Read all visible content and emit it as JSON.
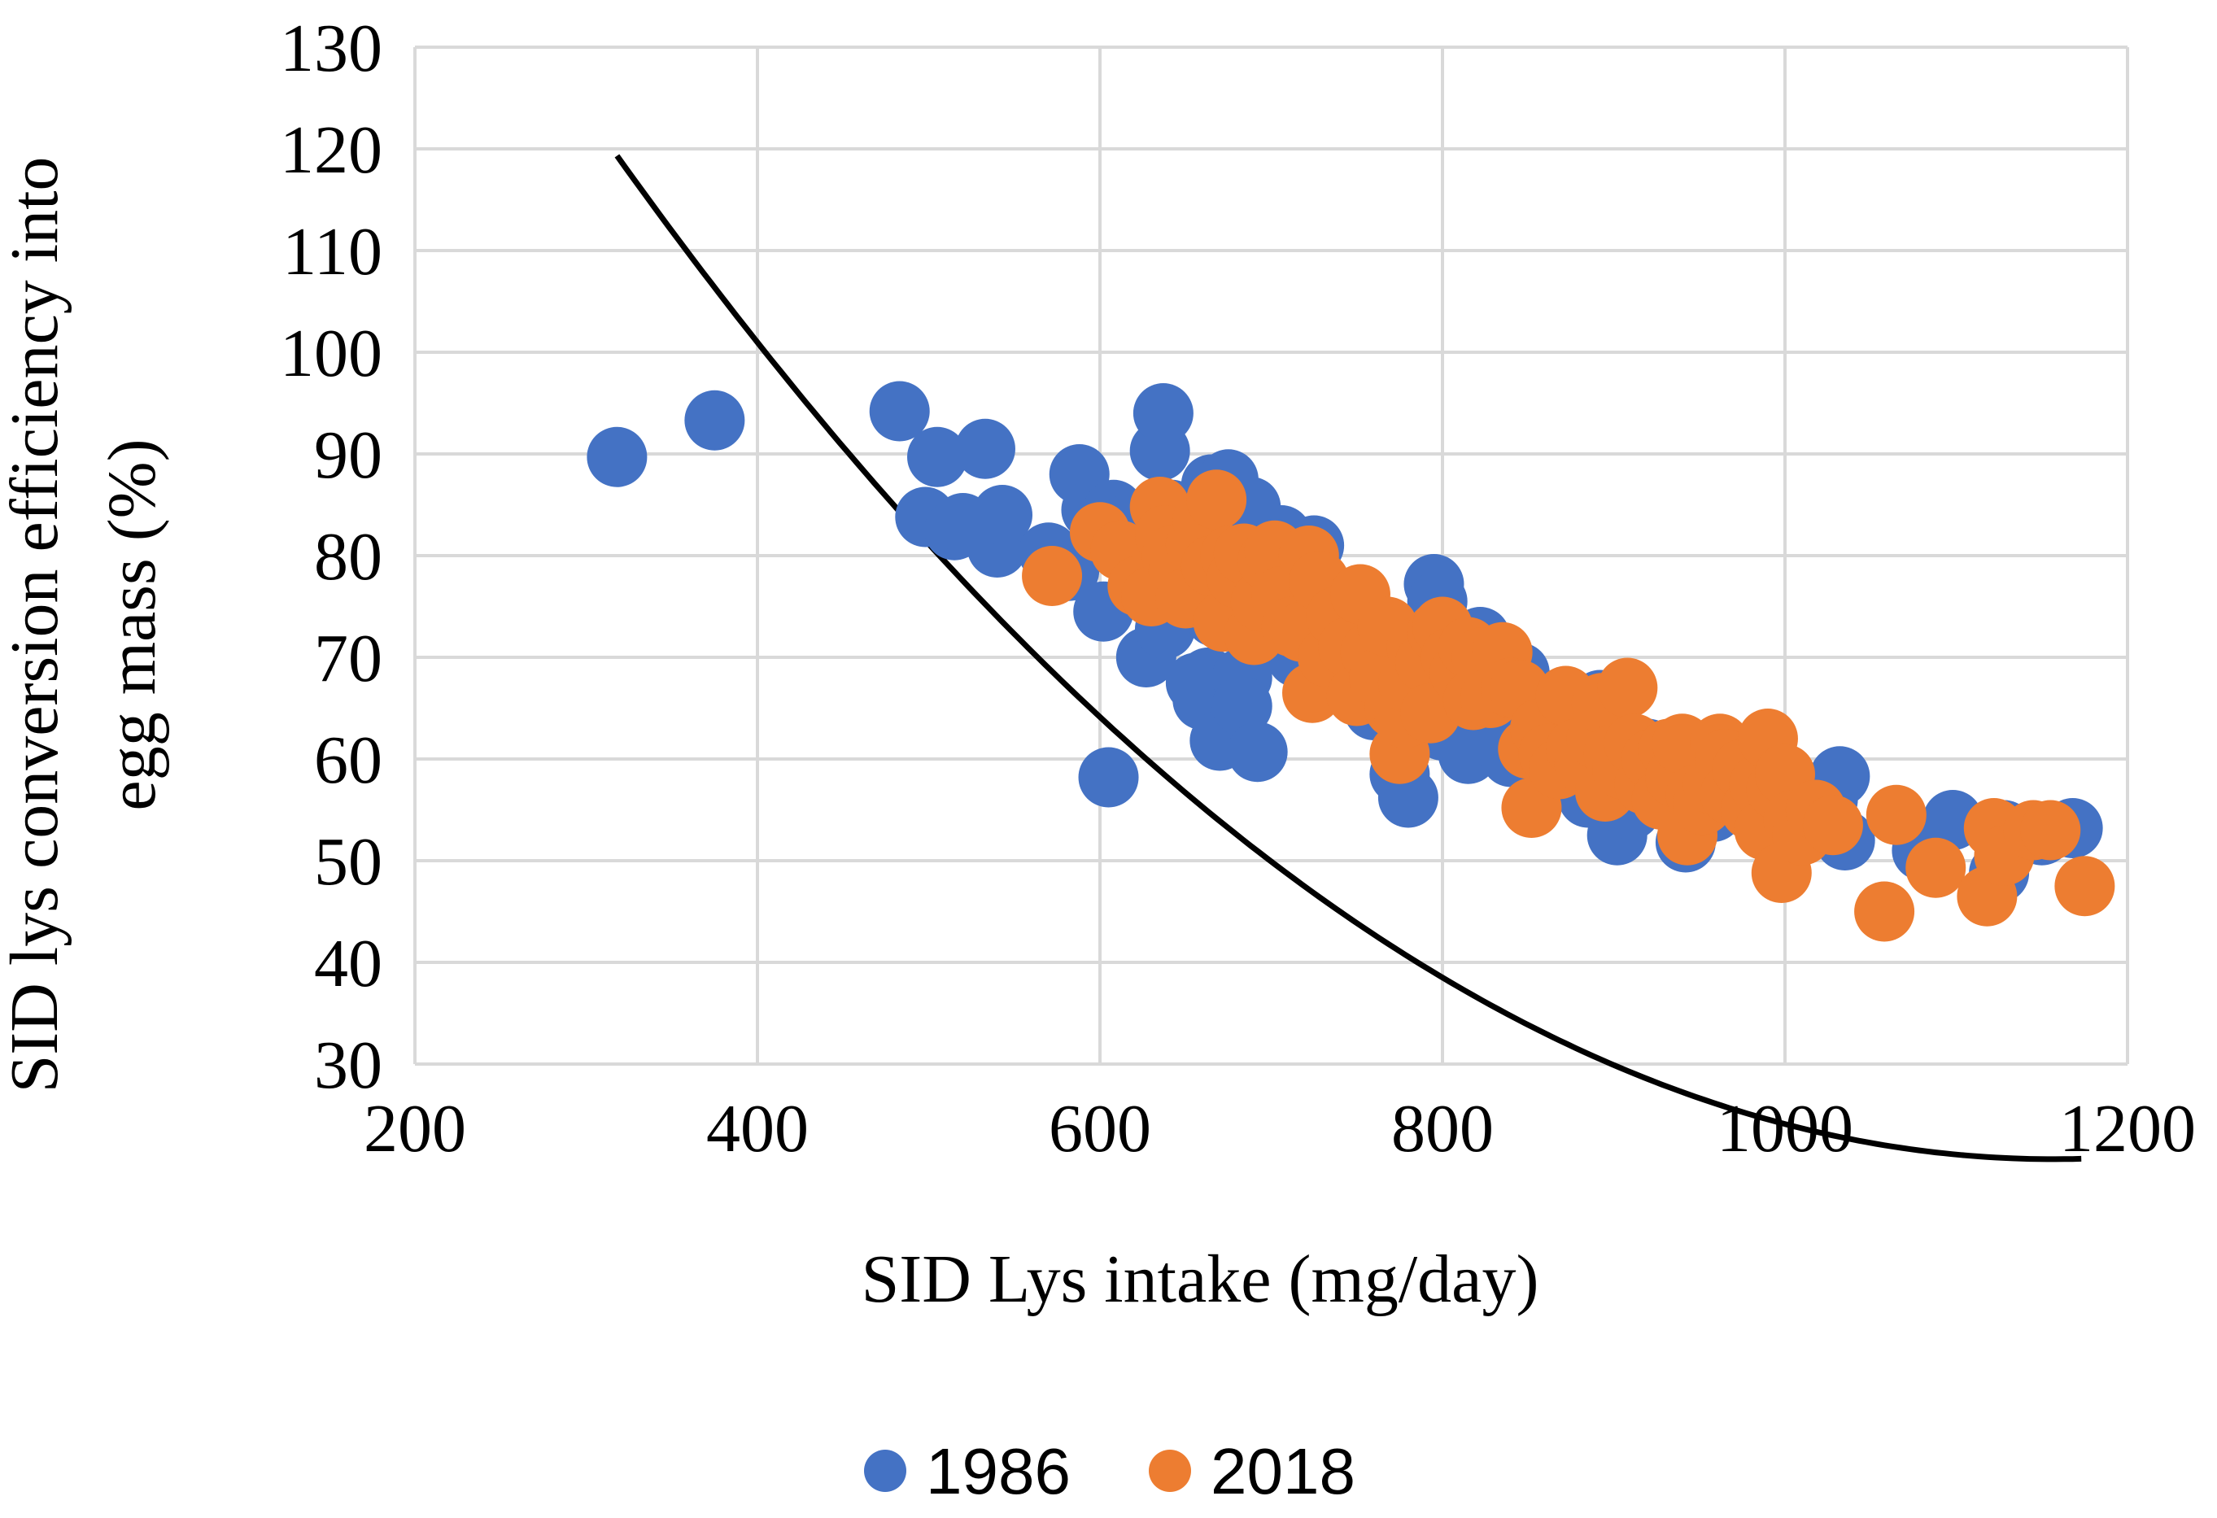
{
  "chart_data": {
    "type": "scatter",
    "title": "",
    "xlabel": "SID Lys intake (mg/day)",
    "ylabel_line1": "SID lys conversion efficiency into",
    "ylabel_line2": "egg mass (%)",
    "xlim": [
      200,
      1200
    ],
    "ylim": [
      30,
      130
    ],
    "x_ticks": [
      200,
      400,
      600,
      800,
      1000,
      1200
    ],
    "y_ticks": [
      30,
      40,
      50,
      60,
      70,
      80,
      90,
      100,
      110,
      120,
      130
    ],
    "grid": true,
    "legend_position": "bottom-center",
    "colors": {
      "series_1986": "#4472C4",
      "series_2018": "#ED7D31",
      "trendline": "#000000",
      "grid": "#D9D9D9"
    },
    "series": [
      {
        "name": "1986",
        "color": "#4472C4",
        "points": [
          [
            318,
            89.7
          ],
          [
            375,
            93.3
          ],
          [
            483,
            94.2
          ],
          [
            498,
            83.8
          ],
          [
            505,
            89.7
          ],
          [
            515,
            82.5
          ],
          [
            520,
            83.2
          ],
          [
            533,
            90.5
          ],
          [
            540,
            80.8
          ],
          [
            543,
            84
          ],
          [
            570,
            80.3
          ],
          [
            582,
            78.5
          ],
          [
            588,
            88
          ],
          [
            595,
            84.5
          ],
          [
            602,
            74.5
          ],
          [
            605,
            58.2
          ],
          [
            608,
            84.5
          ],
          [
            615,
            83
          ],
          [
            627,
            70
          ],
          [
            632,
            81.2
          ],
          [
            635,
            90.3
          ],
          [
            637,
            94
          ],
          [
            638,
            72.8
          ],
          [
            642,
            84.5
          ],
          [
            648,
            79.5
          ],
          [
            652,
            78
          ],
          [
            656,
            67.5
          ],
          [
            660,
            65.8
          ],
          [
            663,
            85.8
          ],
          [
            663,
            68
          ],
          [
            665,
            87
          ],
          [
            667,
            74
          ],
          [
            668,
            79.5
          ],
          [
            670,
            61.8
          ],
          [
            672,
            84
          ],
          [
            675,
            87.5
          ],
          [
            678,
            76.5
          ],
          [
            683,
            68
          ],
          [
            683,
            65.2
          ],
          [
            688,
            84.8
          ],
          [
            692,
            60.7
          ],
          [
            696,
            79
          ],
          [
            702,
            77.5
          ],
          [
            706,
            82
          ],
          [
            710,
            79
          ],
          [
            715,
            70
          ],
          [
            720,
            73
          ],
          [
            725,
            81
          ],
          [
            728,
            76
          ],
          [
            735,
            74.5
          ],
          [
            742,
            71
          ],
          [
            750,
            71
          ],
          [
            760,
            64.8
          ],
          [
            768,
            68.5
          ],
          [
            775,
            58.5
          ],
          [
            778,
            66
          ],
          [
            780,
            56.2
          ],
          [
            787,
            63
          ],
          [
            792,
            64
          ],
          [
            795,
            77.2
          ],
          [
            797,
            75.5
          ],
          [
            800,
            62.8
          ],
          [
            808,
            63.5
          ],
          [
            815,
            60.5
          ],
          [
            822,
            72
          ],
          [
            825,
            67
          ],
          [
            830,
            62
          ],
          [
            838,
            66
          ],
          [
            840,
            60.2
          ],
          [
            845,
            68.5
          ],
          [
            852,
            62.5
          ],
          [
            860,
            60.5
          ],
          [
            865,
            58
          ],
          [
            870,
            59
          ],
          [
            878,
            57.5
          ],
          [
            885,
            56.2
          ],
          [
            892,
            65.8
          ],
          [
            898,
            63
          ],
          [
            902,
            52.5
          ],
          [
            905,
            60
          ],
          [
            910,
            55
          ],
          [
            915,
            57
          ],
          [
            920,
            61
          ],
          [
            925,
            56.5
          ],
          [
            930,
            60
          ],
          [
            938,
            58
          ],
          [
            942,
            51.8
          ],
          [
            950,
            55
          ],
          [
            955,
            59
          ],
          [
            958,
            54.8
          ],
          [
            965,
            56
          ],
          [
            970,
            58.5
          ],
          [
            975,
            57.5
          ],
          [
            985,
            56
          ],
          [
            995,
            55
          ],
          [
            1005,
            53.5
          ],
          [
            1015,
            55.5
          ],
          [
            1025,
            56
          ],
          [
            1032,
            58.3
          ],
          [
            1035,
            52
          ],
          [
            1080,
            51
          ],
          [
            1098,
            54
          ],
          [
            1125,
            48.8
          ],
          [
            1128,
            53
          ],
          [
            1150,
            52.5
          ],
          [
            1168,
            53.2
          ]
        ]
      },
      {
        "name": "2018",
        "color": "#ED7D31",
        "points": [
          [
            572,
            78
          ],
          [
            600,
            82.3
          ],
          [
            612,
            80.5
          ],
          [
            622,
            77
          ],
          [
            630,
            76
          ],
          [
            635,
            84.8
          ],
          [
            638,
            82
          ],
          [
            642,
            80
          ],
          [
            646,
            78.5
          ],
          [
            650,
            75.8
          ],
          [
            656,
            81
          ],
          [
            660,
            83.5
          ],
          [
            665,
            79
          ],
          [
            668,
            85.5
          ],
          [
            672,
            73.5
          ],
          [
            676,
            80
          ],
          [
            680,
            77.8
          ],
          [
            684,
            80.2
          ],
          [
            690,
            72.2
          ],
          [
            694,
            75.5
          ],
          [
            698,
            79.5
          ],
          [
            702,
            80.5
          ],
          [
            706,
            76
          ],
          [
            712,
            73
          ],
          [
            718,
            72.5
          ],
          [
            722,
            80
          ],
          [
            724,
            66.5
          ],
          [
            728,
            77.5
          ],
          [
            733,
            70
          ],
          [
            738,
            74
          ],
          [
            745,
            71
          ],
          [
            750,
            66.2
          ],
          [
            752,
            76.2
          ],
          [
            758,
            70.5
          ],
          [
            763,
            68
          ],
          [
            768,
            73
          ],
          [
            772,
            65
          ],
          [
            775,
            60.5
          ],
          [
            778,
            64
          ],
          [
            780,
            67.5
          ],
          [
            785,
            71
          ],
          [
            790,
            69.5
          ],
          [
            793,
            64.5
          ],
          [
            797,
            72.5
          ],
          [
            800,
            73
          ],
          [
            805,
            70
          ],
          [
            810,
            68.5
          ],
          [
            815,
            71
          ],
          [
            818,
            65.8
          ],
          [
            823,
            70
          ],
          [
            828,
            66
          ],
          [
            835,
            70.5
          ],
          [
            840,
            67
          ],
          [
            845,
            66.8
          ],
          [
            850,
            61
          ],
          [
            852,
            55.2
          ],
          [
            857,
            63
          ],
          [
            862,
            60.5
          ],
          [
            868,
            59
          ],
          [
            872,
            66.2
          ],
          [
            878,
            61
          ],
          [
            883,
            59.5
          ],
          [
            890,
            62
          ],
          [
            893,
            65.5
          ],
          [
            895,
            56.8
          ],
          [
            900,
            60.5
          ],
          [
            905,
            59
          ],
          [
            908,
            67
          ],
          [
            912,
            61.5
          ],
          [
            918,
            57.5
          ],
          [
            922,
            60
          ],
          [
            928,
            56
          ],
          [
            932,
            61
          ],
          [
            936,
            58.2
          ],
          [
            940,
            61.5
          ],
          [
            943,
            52.5
          ],
          [
            948,
            56.5
          ],
          [
            952,
            55.5
          ],
          [
            958,
            57.5
          ],
          [
            962,
            61.5
          ],
          [
            965,
            60
          ],
          [
            968,
            56.5
          ],
          [
            975,
            59
          ],
          [
            980,
            55
          ],
          [
            985,
            57.5
          ],
          [
            988,
            53
          ],
          [
            990,
            62
          ],
          [
            995,
            57
          ],
          [
            998,
            48.8
          ],
          [
            1000,
            58.5
          ],
          [
            1005,
            54
          ],
          [
            1010,
            52.5
          ],
          [
            1018,
            55
          ],
          [
            1028,
            53.5
          ],
          [
            1058,
            45
          ],
          [
            1065,
            54.5
          ],
          [
            1088,
            49.3
          ],
          [
            1118,
            46.5
          ],
          [
            1122,
            53.2
          ],
          [
            1128,
            50.5
          ],
          [
            1145,
            53
          ],
          [
            1155,
            53
          ],
          [
            1175,
            47.5
          ]
        ]
      }
    ],
    "trendline": {
      "type": "polynomial",
      "order": 2,
      "coefficients": [
        208.3,
        -0.3244,
        0.0001402
      ],
      "x_range": [
        318,
        1175
      ]
    }
  }
}
